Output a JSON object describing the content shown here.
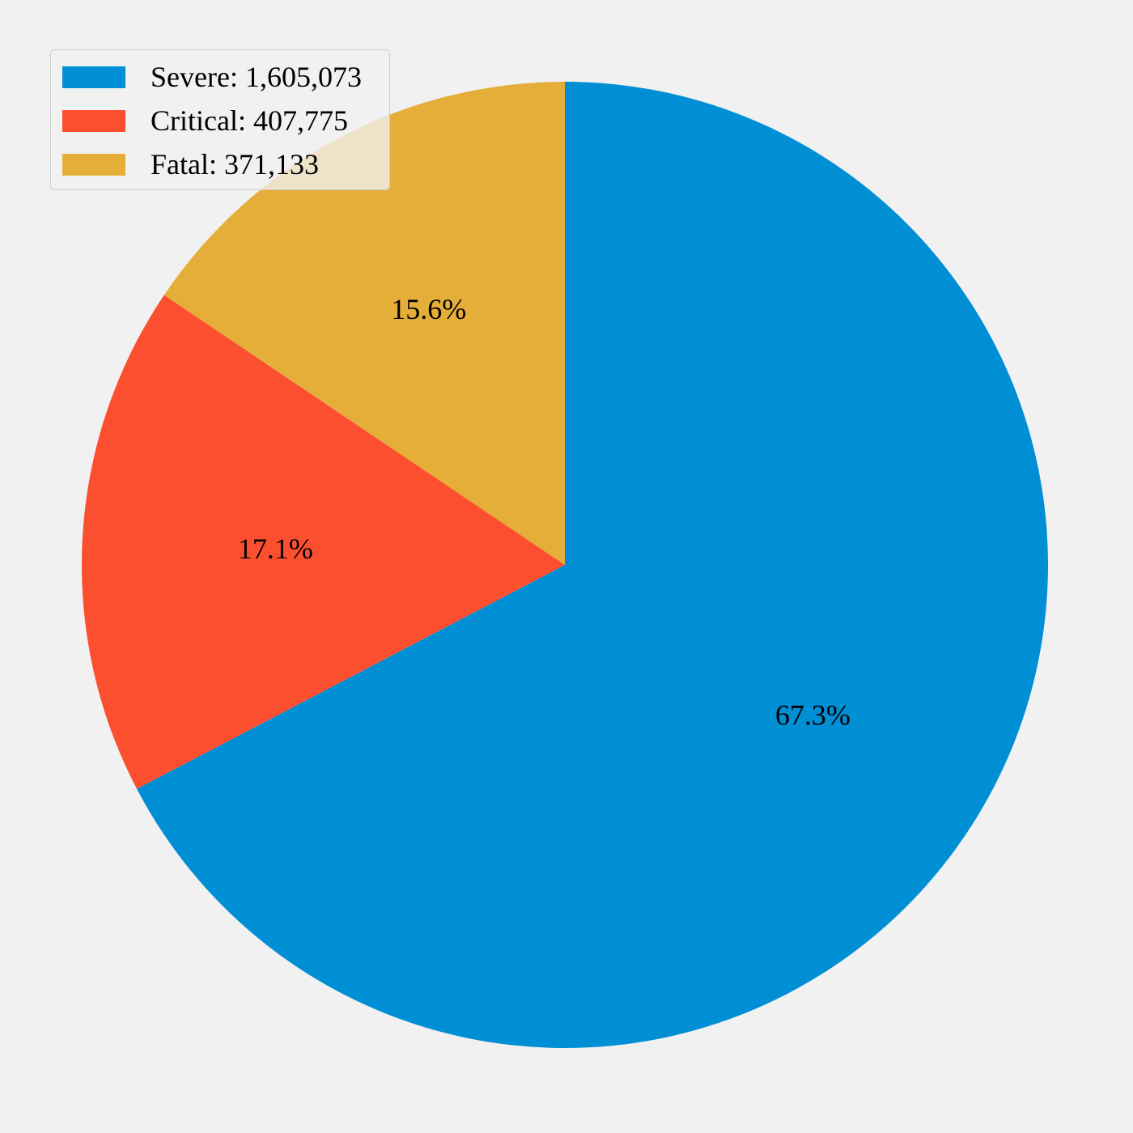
{
  "chart_data": {
    "type": "pie",
    "title": "",
    "categories": [
      "Severe",
      "Critical",
      "Fatal"
    ],
    "values": [
      1605073,
      407775,
      371133
    ],
    "percent_labels": [
      "67.3%",
      "17.1%",
      "15.6%"
    ],
    "colors": [
      "#008fd5",
      "#fc4f30",
      "#e5ae38"
    ],
    "start_angle_deg": 90,
    "direction": "clockwise",
    "legend": {
      "placement": "top-left",
      "entries": [
        "Severe: 1,605,073",
        "Critical: 407,775",
        "Fatal: 371,133"
      ]
    }
  }
}
